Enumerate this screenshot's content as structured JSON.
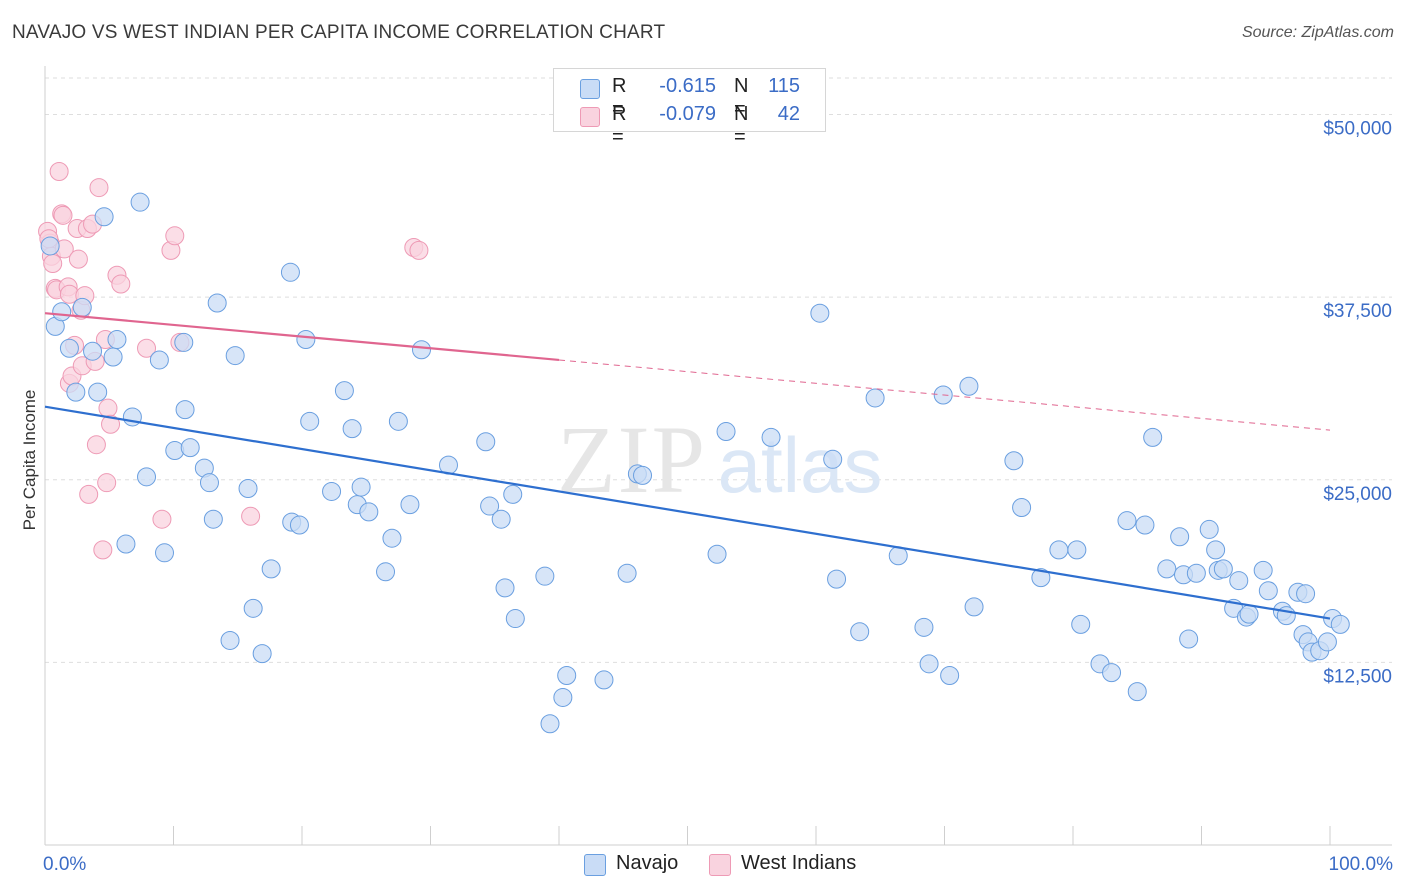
{
  "title": "NAVAJO VS WEST INDIAN PER CAPITA INCOME CORRELATION CHART",
  "source": "Source: ZipAtlas.com",
  "watermark": {
    "zip": "ZIP",
    "atlas": "atlas"
  },
  "legend_top": {
    "rows": [
      {
        "r_label": "R =",
        "r_value": "-0.615",
        "n_label": "N =",
        "n_value": "115",
        "color": "#a9c8f0"
      },
      {
        "r_label": "R =",
        "r_value": "-0.079",
        "n_label": "N =",
        "n_value": "42",
        "color": "#f5b7c8"
      }
    ]
  },
  "legend_bottom": [
    {
      "label": "Navajo",
      "color": "#a9c8f0"
    },
    {
      "label": "West Indians",
      "color": "#f5b7c8"
    }
  ],
  "chart_data": {
    "type": "scatter",
    "title": "NAVAJO VS WEST INDIAN PER CAPITA INCOME CORRELATION CHART",
    "xlabel": "",
    "ylabel": "Per Capita Income",
    "xlim": [
      0,
      100
    ],
    "ylim": [
      0,
      52500
    ],
    "x_tick_labels": [
      "0.0%",
      "100.0%"
    ],
    "y_ticks": [
      12500,
      25000,
      37500,
      50000
    ],
    "y_tick_labels": [
      "$12,500",
      "$25,000",
      "$37,500",
      "$50,000"
    ],
    "grid": true,
    "legend": "top-center",
    "series": [
      {
        "name": "Navajo",
        "color": "#6a9fe0",
        "fill": "#c9dcf6",
        "trend": {
          "x": [
            0,
            100
          ],
          "y": [
            30000,
            15500
          ],
          "style": "solid",
          "color": "#2e6fcf"
        },
        "points": [
          [
            0.4,
            41000
          ],
          [
            0.8,
            35500
          ],
          [
            1.3,
            36500
          ],
          [
            1.9,
            34000
          ],
          [
            2.4,
            31000
          ],
          [
            2.9,
            36800
          ],
          [
            3.7,
            33800
          ],
          [
            4.1,
            31000
          ],
          [
            4.6,
            43000
          ],
          [
            5.3,
            33400
          ],
          [
            5.6,
            34600
          ],
          [
            6.3,
            20600
          ],
          [
            6.8,
            29300
          ],
          [
            7.4,
            44000
          ],
          [
            7.9,
            25200
          ],
          [
            8.9,
            33200
          ],
          [
            9.3,
            20000
          ],
          [
            10.1,
            27000
          ],
          [
            10.8,
            34400
          ],
          [
            10.9,
            29800
          ],
          [
            11.3,
            27200
          ],
          [
            12.4,
            25800
          ],
          [
            12.8,
            24800
          ],
          [
            13.1,
            22300
          ],
          [
            13.4,
            37100
          ],
          [
            14.4,
            14000
          ],
          [
            14.8,
            33500
          ],
          [
            15.8,
            24400
          ],
          [
            16.2,
            16200
          ],
          [
            16.9,
            13100
          ],
          [
            17.6,
            18900
          ],
          [
            19.1,
            39200
          ],
          [
            19.2,
            22100
          ],
          [
            19.8,
            21900
          ],
          [
            20.3,
            34600
          ],
          [
            20.6,
            29000
          ],
          [
            22.3,
            24200
          ],
          [
            23.3,
            31100
          ],
          [
            23.9,
            28500
          ],
          [
            24.3,
            23300
          ],
          [
            24.6,
            24500
          ],
          [
            25.2,
            22800
          ],
          [
            26.5,
            18700
          ],
          [
            27.0,
            21000
          ],
          [
            27.5,
            29000
          ],
          [
            28.4,
            23300
          ],
          [
            29.3,
            33900
          ],
          [
            31.4,
            26000
          ],
          [
            34.3,
            27600
          ],
          [
            34.6,
            23200
          ],
          [
            35.5,
            22300
          ],
          [
            35.8,
            17600
          ],
          [
            36.4,
            24000
          ],
          [
            36.6,
            15500
          ],
          [
            38.9,
            18400
          ],
          [
            39.3,
            8300
          ],
          [
            40.3,
            10100
          ],
          [
            40.6,
            11600
          ],
          [
            43.5,
            11300
          ],
          [
            45.3,
            18600
          ],
          [
            46.1,
            25400
          ],
          [
            46.5,
            25300
          ],
          [
            52.3,
            19900
          ],
          [
            53.0,
            28300
          ],
          [
            56.5,
            27900
          ],
          [
            60.3,
            36400
          ],
          [
            61.3,
            26400
          ],
          [
            61.6,
            18200
          ],
          [
            63.4,
            14600
          ],
          [
            64.6,
            30600
          ],
          [
            66.4,
            19800
          ],
          [
            68.4,
            14900
          ],
          [
            68.8,
            12400
          ],
          [
            69.9,
            30800
          ],
          [
            70.4,
            11600
          ],
          [
            71.9,
            31400
          ],
          [
            72.3,
            16300
          ],
          [
            75.4,
            26300
          ],
          [
            76.0,
            23100
          ],
          [
            77.5,
            18300
          ],
          [
            78.9,
            20200
          ],
          [
            80.3,
            20200
          ],
          [
            80.6,
            15100
          ],
          [
            82.1,
            12400
          ],
          [
            83.0,
            11800
          ],
          [
            84.2,
            22200
          ],
          [
            85.0,
            10500
          ],
          [
            85.6,
            21900
          ],
          [
            86.2,
            27900
          ],
          [
            87.3,
            18900
          ],
          [
            88.3,
            21100
          ],
          [
            88.6,
            18500
          ],
          [
            89.0,
            14100
          ],
          [
            89.6,
            18600
          ],
          [
            90.6,
            21600
          ],
          [
            91.1,
            20200
          ],
          [
            91.3,
            18800
          ],
          [
            91.7,
            18900
          ],
          [
            92.5,
            16200
          ],
          [
            92.9,
            18100
          ],
          [
            93.5,
            15600
          ],
          [
            93.7,
            15800
          ],
          [
            94.8,
            18800
          ],
          [
            95.2,
            17400
          ],
          [
            96.3,
            16000
          ],
          [
            96.6,
            15700
          ],
          [
            97.5,
            17300
          ],
          [
            97.9,
            14400
          ],
          [
            98.1,
            17200
          ],
          [
            98.3,
            13900
          ],
          [
            98.6,
            13200
          ],
          [
            99.2,
            13300
          ],
          [
            99.8,
            13900
          ],
          [
            100.2,
            15500
          ],
          [
            100.8,
            15100
          ]
        ]
      },
      {
        "name": "West Indians",
        "color": "#ee9ab5",
        "fill": "#f9d3df",
        "trend": {
          "x": [
            0,
            40,
            100
          ],
          "y": [
            36400,
            33200,
            28400
          ],
          "solid_until": 40,
          "color": "#e0658f"
        },
        "points": [
          [
            0.2,
            42000
          ],
          [
            0.4,
            41200
          ],
          [
            0.5,
            40300
          ],
          [
            0.6,
            39800
          ],
          [
            0.8,
            38100
          ],
          [
            0.9,
            38000
          ],
          [
            1.1,
            46100
          ],
          [
            1.3,
            43200
          ],
          [
            1.4,
            43100
          ],
          [
            1.5,
            40800
          ],
          [
            1.8,
            38200
          ],
          [
            1.9,
            37700
          ],
          [
            1.9,
            31600
          ],
          [
            2.1,
            32100
          ],
          [
            2.3,
            34200
          ],
          [
            2.5,
            42200
          ],
          [
            2.6,
            40100
          ],
          [
            2.8,
            36600
          ],
          [
            2.9,
            32800
          ],
          [
            3.1,
            37600
          ],
          [
            3.3,
            42200
          ],
          [
            3.4,
            24000
          ],
          [
            3.7,
            42500
          ],
          [
            3.9,
            33100
          ],
          [
            4.0,
            27400
          ],
          [
            4.2,
            45000
          ],
          [
            4.5,
            20200
          ],
          [
            4.7,
            34600
          ],
          [
            4.8,
            24800
          ],
          [
            4.9,
            29900
          ],
          [
            5.1,
            28800
          ],
          [
            5.6,
            39000
          ],
          [
            5.9,
            38400
          ],
          [
            7.9,
            34000
          ],
          [
            9.1,
            22300
          ],
          [
            9.8,
            40700
          ],
          [
            10.1,
            41700
          ],
          [
            10.5,
            34400
          ],
          [
            16.0,
            22500
          ],
          [
            28.7,
            40900
          ],
          [
            29.1,
            40700
          ],
          [
            0.3,
            41500
          ]
        ]
      }
    ]
  }
}
